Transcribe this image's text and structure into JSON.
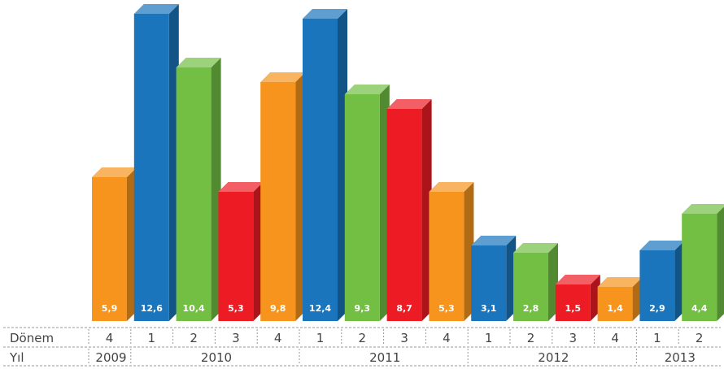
{
  "chart_data": {
    "type": "bar",
    "series": [
      {
        "year": "2009",
        "quarter": "4",
        "value": 5.9,
        "label": "5,9",
        "color": "#f7941d"
      },
      {
        "year": "2010",
        "quarter": "1",
        "value": 12.6,
        "label": "12,6",
        "color": "#1b75bc"
      },
      {
        "year": "2010",
        "quarter": "2",
        "value": 10.4,
        "label": "10,4",
        "color": "#72bf44"
      },
      {
        "year": "2010",
        "quarter": "3",
        "value": 5.3,
        "label": "5,3",
        "color": "#ed1c24"
      },
      {
        "year": "2010",
        "quarter": "4",
        "value": 9.8,
        "label": "9,8",
        "color": "#f7941d"
      },
      {
        "year": "2011",
        "quarter": "1",
        "value": 12.4,
        "label": "12,4",
        "color": "#1b75bc"
      },
      {
        "year": "2011",
        "quarter": "2",
        "value": 9.3,
        "label": "9,3",
        "color": "#72bf44"
      },
      {
        "year": "2011",
        "quarter": "3",
        "value": 8.7,
        "label": "8,7",
        "color": "#ed1c24"
      },
      {
        "year": "2011",
        "quarter": "4",
        "value": 5.3,
        "label": "5,3",
        "color": "#f7941d"
      },
      {
        "year": "2012",
        "quarter": "1",
        "value": 3.1,
        "label": "3,1",
        "color": "#1b75bc"
      },
      {
        "year": "2012",
        "quarter": "2",
        "value": 2.8,
        "label": "2,8",
        "color": "#72bf44"
      },
      {
        "year": "2012",
        "quarter": "3",
        "value": 1.5,
        "label": "1,5",
        "color": "#ed1c24"
      },
      {
        "year": "2012",
        "quarter": "4",
        "value": 1.4,
        "label": "1,4",
        "color": "#f7941d"
      },
      {
        "year": "2013",
        "quarter": "1",
        "value": 2.9,
        "label": "2,9",
        "color": "#1b75bc"
      },
      {
        "year": "2013",
        "quarter": "2",
        "value": 4.4,
        "label": "4,4",
        "color": "#72bf44"
      }
    ],
    "table": {
      "row1_label": "Dönem",
      "row2_label": "Yıl",
      "years": [
        "2009",
        "2010",
        "2011",
        "2012",
        "2013"
      ]
    }
  }
}
